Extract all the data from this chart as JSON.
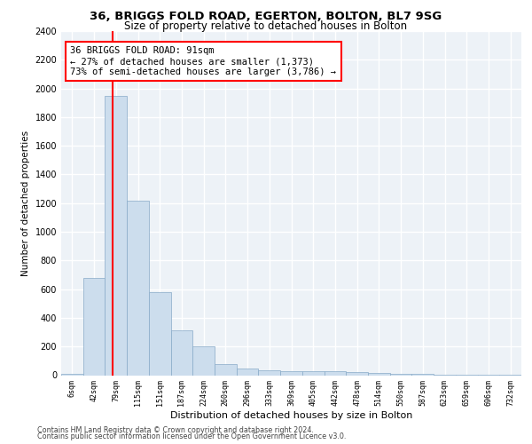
{
  "title": "36, BRIGGS FOLD ROAD, EGERTON, BOLTON, BL7 9SG",
  "subtitle": "Size of property relative to detached houses in Bolton",
  "xlabel": "Distribution of detached houses by size in Bolton",
  "ylabel": "Number of detached properties",
  "categories": [
    "6sqm",
    "42sqm",
    "79sqm",
    "115sqm",
    "151sqm",
    "187sqm",
    "224sqm",
    "260sqm",
    "296sqm",
    "333sqm",
    "369sqm",
    "405sqm",
    "442sqm",
    "478sqm",
    "514sqm",
    "550sqm",
    "587sqm",
    "623sqm",
    "659sqm",
    "696sqm",
    "732sqm"
  ],
  "values": [
    10,
    680,
    1950,
    1220,
    580,
    310,
    200,
    80,
    45,
    35,
    30,
    25,
    25,
    20,
    15,
    10,
    8,
    5,
    5,
    5,
    5
  ],
  "bar_color": "#ccdded",
  "bar_edge_color": "#88aac8",
  "red_line_color": "red",
  "annotation_text": "36 BRIGGS FOLD ROAD: 91sqm\n← 27% of detached houses are smaller (1,373)\n73% of semi-detached houses are larger (3,786) →",
  "annotation_box_color": "white",
  "annotation_box_edge_color": "red",
  "ylim": [
    0,
    2400
  ],
  "yticks": [
    0,
    200,
    400,
    600,
    800,
    1000,
    1200,
    1400,
    1600,
    1800,
    2000,
    2200,
    2400
  ],
  "background_color": "#edf2f7",
  "grid_color": "white",
  "footer_line1": "Contains HM Land Registry data © Crown copyright and database right 2024.",
  "footer_line2": "Contains public sector information licensed under the Open Government Licence v3.0.",
  "red_line_xindex": 2.5
}
